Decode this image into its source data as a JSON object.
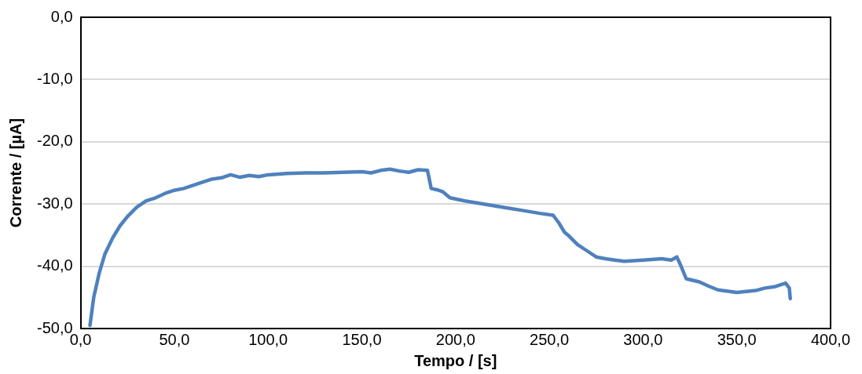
{
  "chart_data": {
    "type": "line",
    "xlabel": "Tempo / [s]",
    "ylabel": "Corrente / [µA]",
    "xlim": [
      0,
      400
    ],
    "ylim": [
      -50,
      0
    ],
    "xticks": [
      {
        "value": 0,
        "label": "0,0"
      },
      {
        "value": 50,
        "label": "50,0"
      },
      {
        "value": 100,
        "label": "100,0"
      },
      {
        "value": 150,
        "label": "150,0"
      },
      {
        "value": 200,
        "label": "200,0"
      },
      {
        "value": 250,
        "label": "250,0"
      },
      {
        "value": 300,
        "label": "300,0"
      },
      {
        "value": 350,
        "label": "350,0"
      },
      {
        "value": 400,
        "label": "400,0"
      }
    ],
    "yticks": [
      {
        "value": -50,
        "label": "-50,0"
      },
      {
        "value": -40,
        "label": "-40,0"
      },
      {
        "value": -30,
        "label": "-30,0"
      },
      {
        "value": -20,
        "label": "-20,0"
      },
      {
        "value": -10,
        "label": "-10,0"
      },
      {
        "value": 0,
        "label": "0,0"
      }
    ],
    "grid": "y",
    "legend": false,
    "marker": "none",
    "line_style": "solid",
    "series": [
      {
        "color": "#4f81bd",
        "x": [
          5,
          7,
          10,
          13,
          17,
          21,
          25,
          30,
          35,
          40,
          45,
          50,
          55,
          60,
          65,
          70,
          75,
          80,
          85,
          90,
          95,
          100,
          110,
          120,
          130,
          140,
          150,
          155,
          160,
          165,
          170,
          175,
          180,
          185,
          187,
          190,
          193,
          195,
          197,
          205,
          215,
          225,
          235,
          245,
          252,
          255,
          258,
          260,
          265,
          270,
          275,
          280,
          285,
          290,
          300,
          310,
          315,
          318,
          320,
          323,
          330,
          335,
          340,
          350,
          360,
          365,
          370,
          376,
          378,
          378.5
        ],
        "values": [
          -49.5,
          -45,
          -41,
          -38,
          -35.5,
          -33.5,
          -32,
          -30.5,
          -29.5,
          -29,
          -28.3,
          -27.8,
          -27.5,
          -27,
          -26.5,
          -26,
          -25.8,
          -25.3,
          -25.7,
          -25.4,
          -25.6,
          -25.3,
          -25.1,
          -25,
          -25,
          -24.9,
          -24.8,
          -25,
          -24.6,
          -24.4,
          -24.7,
          -24.9,
          -24.5,
          -24.6,
          -27.5,
          -27.7,
          -28,
          -28.5,
          -29,
          -29.5,
          -30,
          -30.5,
          -31,
          -31.5,
          -31.8,
          -33,
          -34.5,
          -35,
          -36.5,
          -37.5,
          -38.5,
          -38.8,
          -39,
          -39.2,
          -39,
          -38.8,
          -39,
          -38.5,
          -39.8,
          -42,
          -42.5,
          -43.2,
          -43.8,
          -44.2,
          -43.9,
          -43.5,
          -43.3,
          -42.7,
          -43.5,
          -45.2
        ]
      }
    ]
  }
}
